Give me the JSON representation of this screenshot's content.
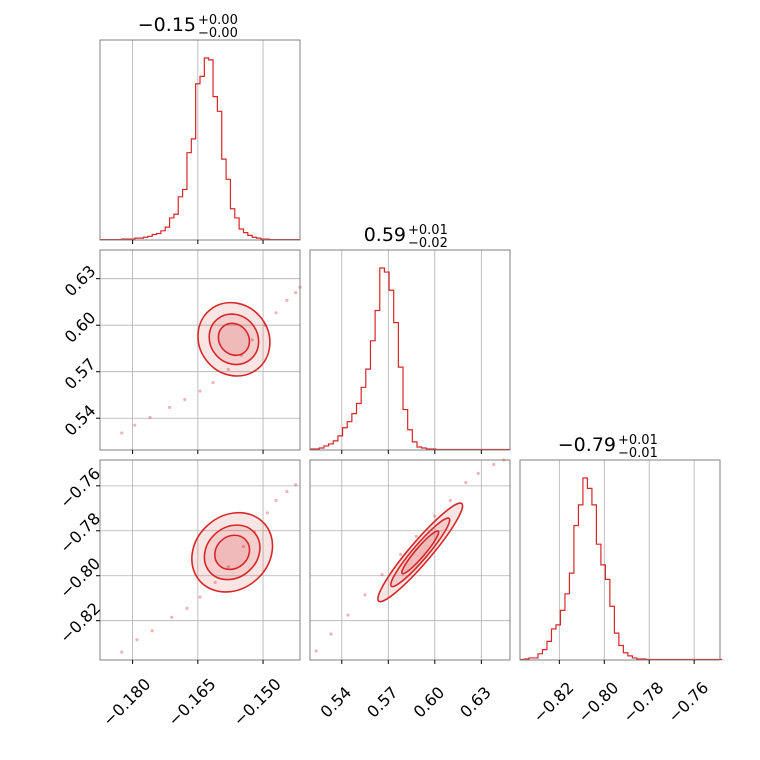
{
  "colors": {
    "accent": "#d62728",
    "grid": "#b0b0b0",
    "frame": "#808080"
  },
  "chart_data": {
    "type": "corner",
    "parameters": [
      {
        "name": "",
        "title_median": "−0.15",
        "title_plus": "+0.00",
        "title_minus": "−0.00",
        "range": [
          -0.1875,
          -0.1415
        ],
        "ticks": [
          -0.18,
          -0.165,
          -0.15
        ],
        "tick_labels": [
          "−0.180",
          "−0.165",
          "−0.150"
        ]
      },
      {
        "name": "",
        "title_median": "0.59",
        "title_plus": "+0.01",
        "title_minus": "−0.02",
        "range": [
          0.5195,
          0.6485
        ],
        "ticks": [
          0.54,
          0.57,
          0.6,
          0.63
        ],
        "tick_labels": [
          "0.54",
          "0.57",
          "0.60",
          "0.63"
        ]
      },
      {
        "name": "",
        "title_median": "−0.79",
        "title_plus": "+0.01",
        "title_minus": "−0.01",
        "range": [
          -0.8375,
          -0.7485
        ],
        "ticks": [
          -0.82,
          -0.8,
          -0.78,
          -0.76
        ],
        "tick_labels": [
          "−0.82",
          "−0.80",
          "−0.78",
          "−0.76"
        ]
      }
    ],
    "histograms": [
      {
        "param": 0,
        "bin_start": -0.1875,
        "bin_width": 0.001,
        "counts": [
          0.5,
          0.5,
          0.5,
          0.5,
          0.5,
          1,
          1,
          1,
          2,
          2,
          3,
          4,
          6,
          7,
          10,
          14,
          24,
          28,
          47,
          55,
          95,
          110,
          170,
          178,
          198,
          196,
          156,
          140,
          88,
          66,
          34,
          24,
          12,
          8,
          5,
          3,
          2,
          1,
          1,
          0.5,
          0.5,
          0.5,
          0.5,
          0.5,
          0.5,
          0.5
        ]
      },
      {
        "param": 1,
        "bin_start": 0.5195,
        "bin_width": 0.003,
        "counts": [
          1,
          1,
          2,
          4,
          6,
          9,
          14,
          22,
          28,
          36,
          46,
          62,
          80,
          108,
          138,
          180,
          176,
          158,
          126,
          82,
          40,
          20,
          8,
          3,
          2,
          1,
          1,
          0.5,
          0.5,
          0.5,
          0.5,
          0.5,
          0.5,
          0.5,
          0.5,
          0.5,
          0.5,
          0.5,
          0.5,
          0.5,
          0.5,
          0.5,
          0.5
        ]
      },
      {
        "param": 2,
        "bin_start": -0.8375,
        "bin_width": 0.002,
        "counts": [
          0.5,
          1,
          2,
          2,
          6,
          10,
          18,
          30,
          34,
          48,
          64,
          84,
          130,
          150,
          176,
          166,
          150,
          112,
          92,
          78,
          52,
          26,
          14,
          7,
          4,
          2,
          1,
          1,
          0.5,
          0.5,
          0.5,
          0.5,
          0.5,
          0.5,
          0.5,
          0.5,
          0.5,
          0.5,
          0.5,
          0.5,
          0.5,
          0.5,
          0.5,
          0.5,
          0.5
        ]
      }
    ],
    "scatter_pairs": [
      {
        "x_param": 0,
        "y_param": 1,
        "points": [
          [
            -0.1825,
            0.5305
          ],
          [
            -0.1795,
            0.5355
          ],
          [
            -0.176,
            0.5405
          ],
          [
            -0.1715,
            0.547
          ],
          [
            -0.168,
            0.552
          ],
          [
            -0.1645,
            0.5575
          ],
          [
            -0.1615,
            0.563
          ],
          [
            -0.158,
            0.5715
          ],
          [
            -0.155,
            0.5805
          ],
          [
            -0.1525,
            0.5905
          ],
          [
            -0.1495,
            0.6
          ],
          [
            -0.147,
            0.608
          ],
          [
            -0.1445,
            0.616
          ],
          [
            -0.1425,
            0.621
          ],
          [
            -0.1415,
            0.6245
          ]
        ]
      },
      {
        "x_param": 0,
        "y_param": 2,
        "points": [
          [
            -0.1825,
            -0.834
          ],
          [
            -0.179,
            -0.8285
          ],
          [
            -0.1755,
            -0.8245
          ],
          [
            -0.171,
            -0.8185
          ],
          [
            -0.1675,
            -0.8145
          ],
          [
            -0.1645,
            -0.8095
          ],
          [
            -0.161,
            -0.803
          ],
          [
            -0.158,
            -0.796
          ],
          [
            -0.1545,
            -0.787
          ],
          [
            -0.152,
            -0.7805
          ],
          [
            -0.149,
            -0.772
          ],
          [
            -0.147,
            -0.7665
          ],
          [
            -0.1445,
            -0.7625
          ],
          [
            -0.1425,
            -0.7595
          ]
        ]
      },
      {
        "x_param": 1,
        "y_param": 2,
        "points": [
          [
            0.5235,
            -0.8335
          ],
          [
            0.533,
            -0.826
          ],
          [
            0.544,
            -0.8175
          ],
          [
            0.555,
            -0.8085
          ],
          [
            0.566,
            -0.7995
          ],
          [
            0.578,
            -0.7905
          ],
          [
            0.588,
            -0.7825
          ],
          [
            0.6,
            -0.7735
          ],
          [
            0.61,
            -0.7665
          ],
          [
            0.62,
            -0.7585
          ],
          [
            0.628,
            -0.7545
          ],
          [
            0.638,
            -0.7505
          ],
          [
            0.6445,
            -0.7485
          ]
        ]
      }
    ],
    "contours": [
      {
        "x_param": 0,
        "y_param": 1,
        "center": [
          -0.1567,
          0.5909
        ],
        "levels": [
          {
            "a": 0.0153,
            "b": 0.00109,
            "angle": 66
          },
          {
            "a": 0.0105,
            "b": 0.00075,
            "angle": 66
          },
          {
            "a": 0.0065,
            "b": 0.00048,
            "angle": 66
          }
        ]
      },
      {
        "x_param": 0,
        "y_param": 2,
        "center": [
          -0.1571,
          -0.7896
        ],
        "levels": [
          {
            "a": 0.0148,
            "b": 0.00105,
            "angle": 60
          },
          {
            "a": 0.0102,
            "b": 0.00072,
            "angle": 60
          },
          {
            "a": 0.0063,
            "b": 0.00046,
            "angle": 60
          }
        ]
      },
      {
        "x_param": 1,
        "y_param": 2,
        "center": [
          0.5906,
          -0.7896
        ],
        "levels": [
          {
            "a": 0.0345,
            "b": 0.00086,
            "angle": 39
          },
          {
            "a": 0.024,
            "b": 0.0006,
            "angle": 39
          },
          {
            "a": 0.015,
            "b": 0.00038,
            "angle": 39
          }
        ]
      }
    ],
    "grid": true,
    "legend": "none"
  }
}
